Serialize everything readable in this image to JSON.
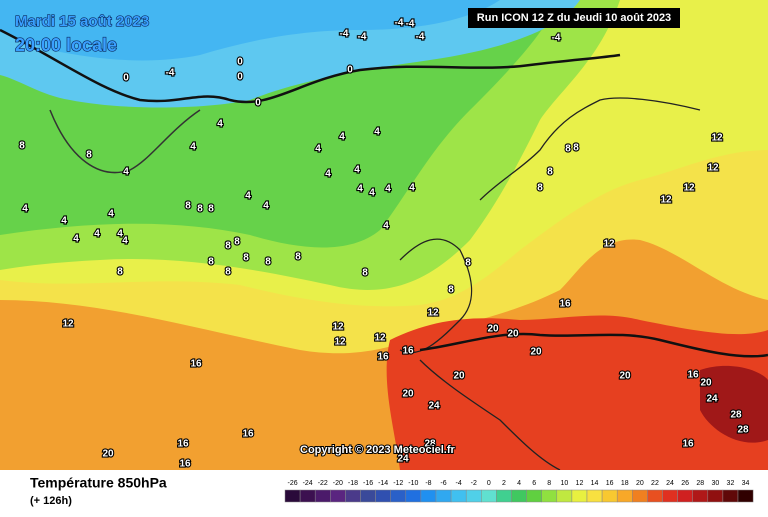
{
  "header": {
    "date": "Mardi 15 août 2023",
    "time": "20:00 locale",
    "run": "Run ICON 12 Z du Jeudi 10 août 2023"
  },
  "copyright": "Copyright © 2023 Meteociel.fr",
  "footer": {
    "title": "Température 850hPa",
    "lead": "(+ 126h)"
  },
  "legend": {
    "ticks": [
      -26,
      -24,
      -22,
      -20,
      -18,
      -16,
      -14,
      -12,
      -10,
      -8,
      -6,
      -4,
      -2,
      0,
      2,
      4,
      6,
      8,
      10,
      12,
      14,
      16,
      18,
      20,
      22,
      24,
      26,
      28,
      30,
      32,
      34
    ],
    "colors": [
      "#2a0a3a",
      "#3c1050",
      "#4b1a6a",
      "#5a2580",
      "#4a3a8a",
      "#3a4a9a",
      "#3050b0",
      "#2a60c8",
      "#2070e0",
      "#2090f0",
      "#30a8f0",
      "#40c0f0",
      "#50d0e8",
      "#60e0d0",
      "#40d090",
      "#40c860",
      "#60d040",
      "#90e040",
      "#c0e840",
      "#e8f040",
      "#f8e040",
      "#f8c830",
      "#f8a828",
      "#f08020",
      "#e85020",
      "#e03020",
      "#d02020",
      "#b01818",
      "#901010",
      "#600808",
      "#300000"
    ]
  },
  "contour_labels": [
    "0",
    "0",
    "0",
    "0",
    "0",
    "-4",
    "-4",
    "-4",
    "-4",
    "-4",
    "-4",
    "-4",
    "4",
    "4",
    "4",
    "4",
    "4",
    "4",
    "4",
    "4",
    "4",
    "4",
    "4",
    "4",
    "4",
    "4",
    "4",
    "4",
    "4",
    "4",
    "4",
    "4",
    "4",
    "4",
    "8",
    "8",
    "8",
    "8",
    "8",
    "8",
    "8",
    "8",
    "8",
    "8",
    "8",
    "8",
    "8",
    "8",
    "8",
    "8",
    "8",
    "8",
    "8",
    "8",
    "12",
    "12",
    "12",
    "12",
    "12",
    "12",
    "12",
    "12",
    "12",
    "12",
    "16",
    "16",
    "16",
    "16",
    "16",
    "16",
    "16",
    "16",
    "16",
    "20",
    "20",
    "20",
    "20",
    "20",
    "20",
    "20",
    "20",
    "24",
    "24",
    "24",
    "28",
    "28",
    "28"
  ]
}
